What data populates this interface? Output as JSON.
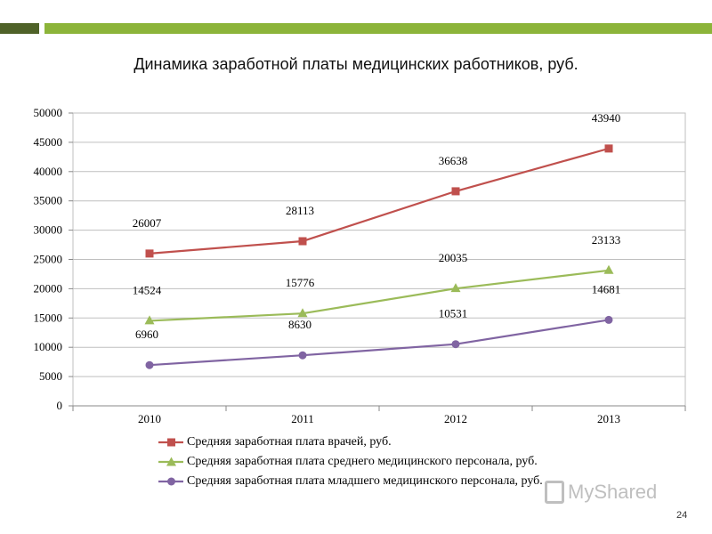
{
  "header": {
    "title": "Динамика заработной платы медицинских работников, руб."
  },
  "chart_data": {
    "type": "line",
    "title": "",
    "xlabel": "",
    "ylabel": "",
    "categories": [
      "2010",
      "2011",
      "2012",
      "2013"
    ],
    "ylim": [
      0,
      50000
    ],
    "yticks": [
      0,
      5000,
      10000,
      15000,
      20000,
      25000,
      30000,
      35000,
      40000,
      45000,
      50000
    ],
    "grid": true,
    "legend_position": "bottom",
    "series": [
      {
        "name": "Средняя заработная плата врачей, руб.",
        "values": [
          26007,
          28113,
          36638,
          43940
        ],
        "color": "#c0504d",
        "marker": "square"
      },
      {
        "name": "Средняя заработная плата среднего медицинского персонала, руб.",
        "values": [
          14524,
          15776,
          20035,
          23133
        ],
        "color": "#9bbb59",
        "marker": "triangle"
      },
      {
        "name": "Средняя заработная плата младшего медицинского персонала, руб.",
        "values": [
          6960,
          8630,
          10531,
          14681
        ],
        "color": "#8064a2",
        "marker": "circle"
      }
    ]
  },
  "watermark": {
    "text": "MyShared"
  },
  "footer": {
    "page_number": "24"
  },
  "colors": {
    "accent_dark": "#4f6228",
    "accent_light": "#8cb43a"
  }
}
